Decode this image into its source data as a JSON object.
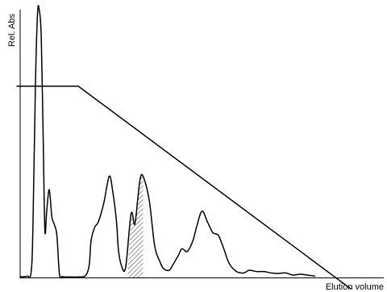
{
  "chart_data": {
    "type": "line",
    "title": "",
    "xlabel": "Elution volume",
    "ylabel": "Rel. Abs",
    "grid": false,
    "xlim": [
      0,
      100
    ],
    "ylim": [
      0,
      100
    ],
    "series": [
      {
        "x": [
          0,
          1,
          2,
          3,
          3.5,
          4.2,
          4.8,
          5.3,
          5.8,
          6.3,
          6.8,
          7.3,
          8.0,
          8.7,
          9.4,
          10.1,
          10.8,
          11.5,
          12.2,
          13,
          14,
          16,
          18,
          19,
          19.5,
          20.5,
          21.5,
          23,
          24.5,
          25.5,
          26.5,
          27,
          27.8,
          29,
          30.5,
          31.5,
          32.3,
          33,
          33.8,
          35.5,
          37,
          38.5,
          39.5,
          41,
          42,
          43.5,
          44.5,
          46,
          47.5,
          48.5,
          50,
          51.5,
          53,
          54.5,
          56,
          57.5,
          59.5,
          61.5,
          63,
          65,
          67,
          69,
          71,
          73,
          75,
          77,
          79,
          81
        ],
        "values": [
          0.5,
          0.6,
          0.8,
          2,
          18,
          72,
          99,
          99.5,
          90,
          55,
          18,
          25,
          33,
          23,
          20,
          16,
          1.5,
          0.7,
          0.5,
          0.5,
          0.5,
          0.5,
          1,
          5,
          14,
          19,
          21,
          28,
          38,
          32,
          21,
          11,
          5,
          4,
          24,
          20,
          29,
          37,
          38,
          29,
          12,
          6,
          3.5,
          3,
          5,
          8.5,
          11,
          10,
          14,
          19,
          25,
          21,
          17,
          16,
          11,
          5.5,
          2.5,
          2,
          3,
          2.5,
          2.5,
          2,
          1.8,
          2,
          1.2,
          1.5,
          1.2,
          0.8
        ]
      },
      {
        "x": [
          -1,
          16,
          91
        ],
        "values": [
          71.5,
          71.5,
          -4
        ]
      }
    ],
    "annotations": [
      {
        "type": "hatched-region",
        "x": [
          29.5,
          33.8
        ]
      }
    ]
  }
}
